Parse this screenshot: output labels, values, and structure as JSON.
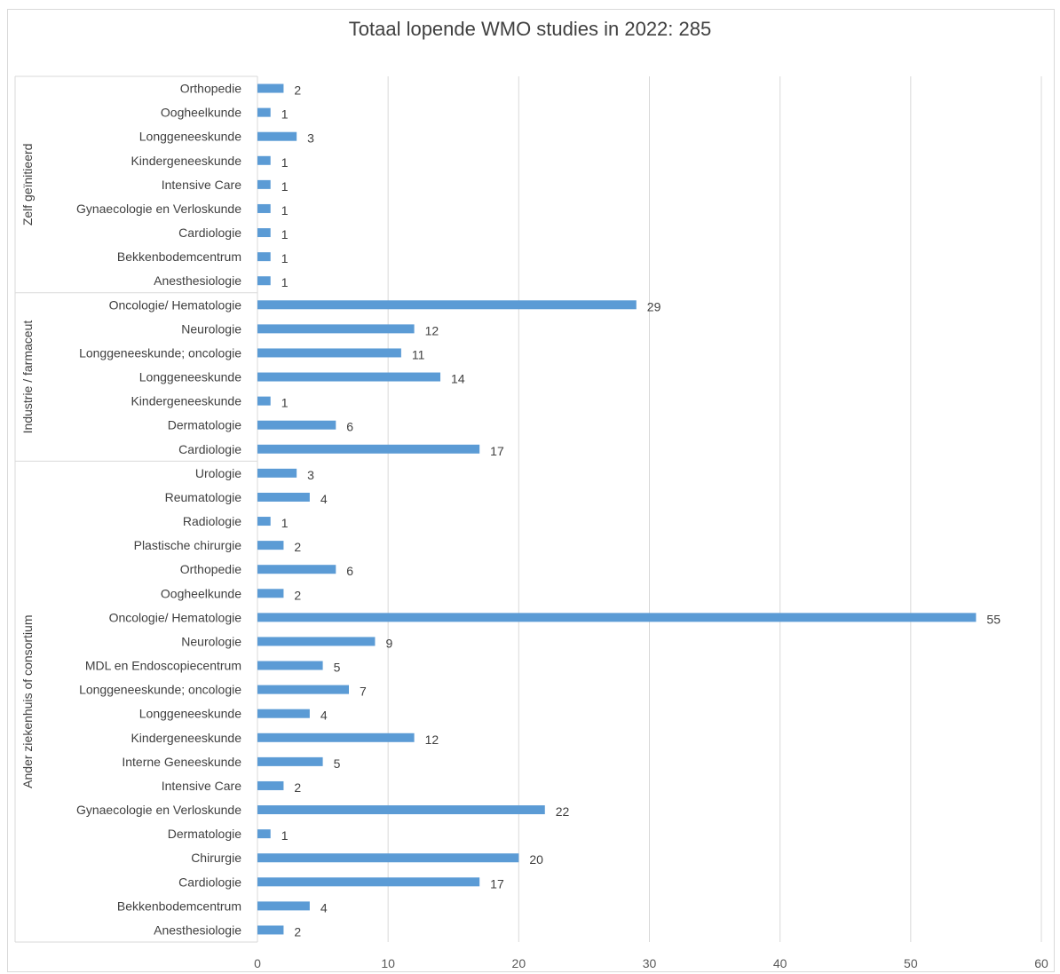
{
  "chart_data": {
    "type": "bar",
    "orientation": "horizontal",
    "title": "Totaal lopende WMO studies in 2022: 285",
    "xlim": [
      0,
      60
    ],
    "x_ticks": [
      0,
      10,
      20,
      30,
      40,
      50,
      60
    ],
    "grid": "vertical",
    "bar_color": "#5b9bd5",
    "groups": [
      {
        "name": "Zelf geïnitieerd",
        "categories": [
          "Orthopedie",
          "Oogheelkunde",
          "Longgeneeskunde",
          "Kindergeneeskunde",
          "Intensive Care",
          "Gynaecologie en Verloskunde",
          "Cardiologie",
          "Bekkenbodemcentrum",
          "Anesthesiologie"
        ],
        "values": [
          2,
          1,
          3,
          1,
          1,
          1,
          1,
          1,
          1
        ]
      },
      {
        "name": "Industrie / farmaceut",
        "categories": [
          "Oncologie/ Hematologie",
          "Neurologie",
          "Longgeneeskunde; oncologie",
          "Longgeneeskunde",
          "Kindergeneeskunde",
          "Dermatologie",
          "Cardiologie"
        ],
        "values": [
          29,
          12,
          11,
          14,
          1,
          6,
          17
        ]
      },
      {
        "name": "Ander ziekenhuis of consortium",
        "categories": [
          "Urologie",
          "Reumatologie",
          "Radiologie",
          "Plastische chirurgie",
          "Orthopedie",
          "Oogheelkunde",
          "Oncologie/ Hematologie",
          "Neurologie",
          "MDL en Endoscopiecentrum",
          "Longgeneeskunde; oncologie",
          "Longgeneeskunde",
          "Kindergeneeskunde",
          "Interne Geneeskunde",
          "Intensive Care",
          "Gynaecologie en Verloskunde",
          "Dermatologie",
          "Chirurgie",
          "Cardiologie",
          "Bekkenbodemcentrum",
          "Anesthesiologie"
        ],
        "values": [
          3,
          4,
          1,
          2,
          6,
          2,
          55,
          9,
          5,
          7,
          4,
          12,
          5,
          2,
          22,
          1,
          20,
          17,
          4,
          2
        ]
      }
    ]
  }
}
